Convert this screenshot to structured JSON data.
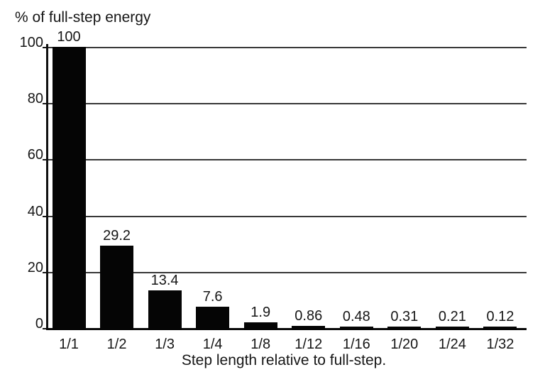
{
  "chart_data": {
    "type": "bar",
    "title": "% of full-step energy",
    "xlabel": "Step length relative to full-step.",
    "ylabel": "",
    "categories": [
      "1/1",
      "1/2",
      "1/3",
      "1/4",
      "1/8",
      "1/12",
      "1/16",
      "1/20",
      "1/24",
      "1/32"
    ],
    "values": [
      100,
      29.2,
      13.4,
      7.6,
      1.9,
      0.86,
      0.48,
      0.31,
      0.21,
      0.12
    ],
    "value_labels": [
      "100",
      "29.2",
      "13.4",
      "7.6",
      "1.9",
      "0.86",
      "0.48",
      "0.31",
      "0.21",
      "0.12"
    ],
    "yticks": [
      0,
      20,
      40,
      60,
      80,
      100
    ],
    "ylim": [
      0,
      100
    ],
    "grid": true,
    "legend": "none",
    "bar_color": "#050505",
    "gridline_color": "#383838",
    "text_color": "#161616",
    "background_color": "#ffffff"
  }
}
